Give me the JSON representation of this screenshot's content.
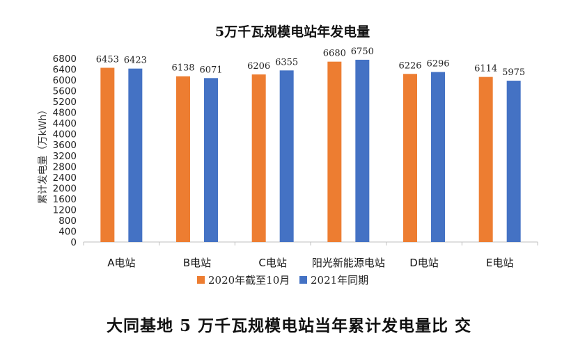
{
  "chart_data": {
    "type": "bar",
    "title": "5万千瓦规模电站年发电量",
    "ylabel": "累计发电量（万kWh）",
    "xlabel": "",
    "ylim": [
      0,
      6800
    ],
    "ytick_step": 400,
    "categories": [
      "A电站",
      "B电站",
      "C电站",
      "阳光新能源电站",
      "D电站",
      "E电站"
    ],
    "series": [
      {
        "name": "2020年截至10月",
        "color": "#ed7d31",
        "values": [
          6453,
          6138,
          6206,
          6680,
          6226,
          6114
        ]
      },
      {
        "name": "2021年同期",
        "color": "#4472c4",
        "values": [
          6423,
          6071,
          6355,
          6750,
          6296,
          5975
        ]
      }
    ],
    "grid": false,
    "legend_position": "bottom"
  },
  "caption": "大同基地 5 万千瓦规模电站当年累计发电量比 交"
}
